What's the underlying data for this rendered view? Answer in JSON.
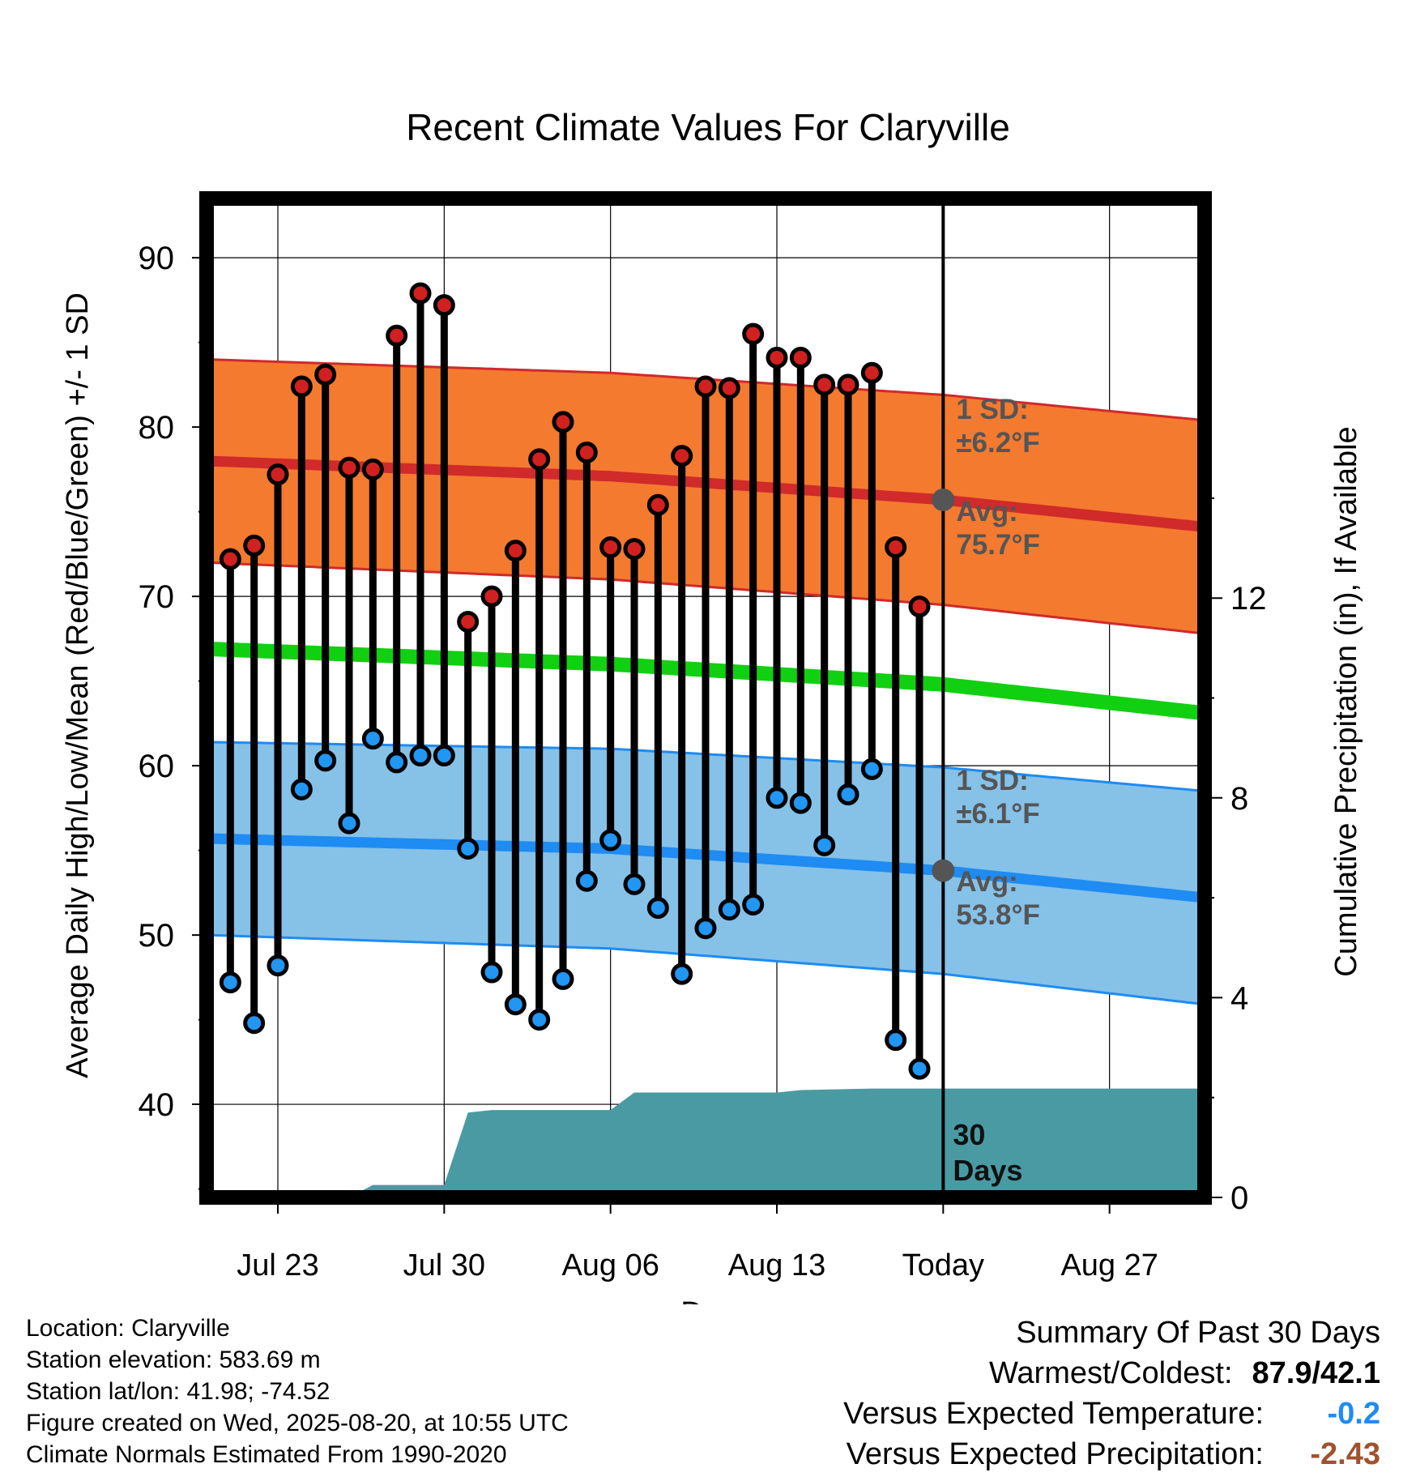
{
  "chart_data": {
    "type": "line",
    "title": "Recent Climate Values For Claryville",
    "xlabel": "Day",
    "ylabel": "Average Daily High/Low/Mean (Red/Blue/Green) +/- 1 SD",
    "y2label": "Cumulative Precipitation (in), If Available",
    "x_domain": [
      "2025-07-20",
      "2025-08-31"
    ],
    "ylim": [
      34.5,
      93.5
    ],
    "y2lim": [
      0,
      20
    ],
    "xticks": [
      {
        "date": "2025-07-23",
        "label": "Jul 23"
      },
      {
        "date": "2025-07-30",
        "label": "Jul 30"
      },
      {
        "date": "2025-08-06",
        "label": "Aug 06"
      },
      {
        "date": "2025-08-13",
        "label": "Aug 13"
      },
      {
        "date": "2025-08-20",
        "label": "Today"
      },
      {
        "date": "2025-08-27",
        "label": "Aug 27"
      }
    ],
    "yticks": [
      40,
      50,
      60,
      70,
      80,
      90
    ],
    "y2ticks": [
      0,
      4,
      8,
      12
    ],
    "grid": true,
    "today": "2025-08-20",
    "observed": {
      "dates": [
        "2025-07-21",
        "2025-07-22",
        "2025-07-23",
        "2025-07-24",
        "2025-07-25",
        "2025-07-26",
        "2025-07-27",
        "2025-07-28",
        "2025-07-29",
        "2025-07-30",
        "2025-07-31",
        "2025-08-01",
        "2025-08-02",
        "2025-08-03",
        "2025-08-04",
        "2025-08-05",
        "2025-08-06",
        "2025-08-07",
        "2025-08-08",
        "2025-08-09",
        "2025-08-10",
        "2025-08-11",
        "2025-08-12",
        "2025-08-13",
        "2025-08-14",
        "2025-08-15",
        "2025-08-16",
        "2025-08-17",
        "2025-08-18",
        "2025-08-19"
      ],
      "high": [
        72.2,
        73.0,
        77.2,
        82.4,
        83.1,
        77.6,
        77.5,
        85.4,
        87.9,
        87.2,
        68.5,
        70.0,
        72.7,
        78.1,
        80.3,
        78.5,
        72.9,
        72.8,
        75.4,
        78.3,
        82.4,
        82.3,
        85.5,
        84.1,
        84.1,
        82.5,
        82.5,
        83.2,
        72.9,
        69.4
      ],
      "low": [
        47.2,
        44.8,
        48.2,
        58.6,
        60.3,
        56.6,
        61.6,
        60.2,
        60.6,
        60.6,
        55.1,
        47.8,
        45.9,
        45.0,
        47.4,
        53.2,
        55.6,
        53.0,
        51.6,
        47.7,
        50.4,
        51.5,
        51.8,
        58.1,
        57.8,
        55.3,
        58.3,
        59.8,
        43.8,
        42.1
      ]
    },
    "normals": {
      "dates": [
        "2025-07-20",
        "2025-08-06",
        "2025-08-20",
        "2025-08-31"
      ],
      "high_avg": [
        78.0,
        77.1,
        75.7,
        74.1
      ],
      "high_sd": [
        6.0,
        6.1,
        6.2,
        6.3
      ],
      "low_avg": [
        55.7,
        55.1,
        53.8,
        52.2
      ],
      "low_sd": [
        5.7,
        5.9,
        6.1,
        6.3
      ],
      "mean_avg": [
        66.9,
        66.0,
        64.8,
        63.1
      ]
    },
    "precip": {
      "dates": [
        "2025-07-20",
        "2025-07-26",
        "2025-07-27",
        "2025-07-30",
        "2025-07-31",
        "2025-08-01",
        "2025-08-06",
        "2025-08-07",
        "2025-08-13",
        "2025-08-14",
        "2025-08-17",
        "2025-08-31"
      ],
      "cumulative": [
        0,
        0,
        0.25,
        0.25,
        1.7,
        1.75,
        1.75,
        2.1,
        2.1,
        2.15,
        2.18,
        2.18
      ]
    },
    "annotations": {
      "high_sd": [
        "1 SD:",
        "±6.2°F"
      ],
      "high_avg": [
        "Avg:",
        "75.7°F"
      ],
      "low_sd": [
        "1 SD:",
        "±6.1°F"
      ],
      "low_avg": [
        "Avg:",
        "53.8°F"
      ],
      "precip_days": [
        "30",
        "Days"
      ]
    },
    "colors": {
      "high_band": "#f47a2f",
      "high_line": "#d02a2a",
      "low_band": "#86c1e8",
      "low_line": "#1e8cf2",
      "mean_line": "#11d011",
      "precip": "#4a9aa3",
      "high_dot": "#d02020",
      "low_dot": "#2196f3"
    }
  },
  "footer": {
    "location": "Location: Claryville",
    "elevation": "Station elevation: 583.69 m",
    "latlon": "Station lat/lon: 41.98; -74.52",
    "created": "Figure created on Wed, 2025-08-20, at 10:55 UTC",
    "normals": "Climate Normals Estimated From 1990-2020"
  },
  "summary": {
    "title": "Summary Of Past 30 Days",
    "warmest_label": "Warmest/Coldest:",
    "warmest_value": "87.9/42.1",
    "temp_label": "Versus Expected Temperature:",
    "temp_value": "-0.2",
    "temp_color": "#1e8cf2",
    "precip_label": "Versus Expected Precipitation:",
    "precip_value": "-2.43",
    "precip_color": "#a0522d"
  }
}
